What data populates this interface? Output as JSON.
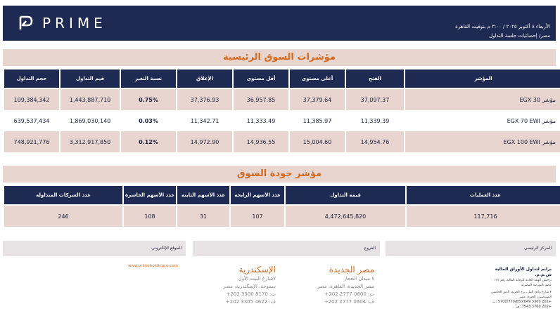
{
  "header": {
    "brand": "PRIME",
    "date_line": "الأربعاء ٨ أكتوبر ٢٠٢٥ / ٣:٠٠ م بتوقيت القاهرة",
    "subtitle": "مصر/ إحصائيات جلسة التداول"
  },
  "indices": {
    "title": "مؤشرات السوق الرئيسية",
    "headers": {
      "name": "المؤشر",
      "open": "الفتح",
      "high": "أعلى مستوى",
      "low": "أقل مستوى",
      "close": "الإغلاق",
      "change": "نسبة التغير",
      "value": "قيم التداول",
      "volume": "حجم التداول"
    },
    "rows": [
      {
        "name": "مؤشر EGX 30",
        "open": "37,097.37",
        "high": "37,379.64",
        "low": "36,957.85",
        "close": "37,376.93",
        "change": "0.75%",
        "value": "1,443,887,710",
        "volume": "109,384,342"
      },
      {
        "name": "مؤشر EGX 70 EWI",
        "open": "11,339.39",
        "high": "11,385.97",
        "low": "11,333.49",
        "close": "11,342.71",
        "change": "0.03%",
        "value": "1,869,030,140",
        "volume": "639,537,434"
      },
      {
        "name": "مؤشر EGX 100 EWI",
        "open": "14,954.76",
        "high": "15,004.60",
        "low": "14,936.55",
        "close": "14,972.90",
        "change": "0.12%",
        "value": "3,312,917,850",
        "volume": "748,921,776"
      }
    ]
  },
  "quality": {
    "title": "مؤشر جودة السوق",
    "headers": {
      "trades": "عدد العمليات",
      "value": "قيمة التداول",
      "gainers": "عدد الأسهم الرابحة",
      "unchanged": "عدد الأسهم الثابتة",
      "losers": "عدد الأسهم الخاسرة",
      "traded": "عدد الشركات المتداولة"
    },
    "values": {
      "trades": "117,716",
      "value": "4,472,645,820",
      "gainers": "107",
      "unchanged": "31",
      "losers": "108",
      "traded": "246"
    }
  },
  "footer": {
    "website_label": "الموقع الإلكتروني",
    "branches_label": "الفروع",
    "hq_label": "المركز الرئيسي",
    "website": "www.primeholdingco.com",
    "alex": {
      "title": "الإسكندرية",
      "line1": "٧شارع البيت الأول",
      "line2": "سموحة، الإسكندرية، مصر",
      "tel": "ت: 8170 3300 202+",
      "fax": "ف: 4622 3305 202+"
    },
    "cairo": {
      "title": "مصر الجديدة",
      "line1": "٧ ميدان الحجاز",
      "line2": "مصر الجديدة، القاهرة، مصر",
      "tel": "ت: 0600 2777 202+",
      "fax": "ف: 0604 2777 202+"
    },
    "hq": {
      "name": "برايم لتداول الأوراق المالية ش.م.م.",
      "license1": "ترخيص الهيئة العامة للرقابة المالية رقم ١٧٣",
      "license2": "عضو بالبورصة المصرية",
      "addr1": "٢ شارع وادي النيل، برج الحرية، الدور الخامس",
      "addr2": "المهندسين، الجيزة، مصر",
      "tel": "+202 3300 5700/770/650/649 :ت",
      "fax": "+202 3760 7543 :ف"
    }
  }
}
